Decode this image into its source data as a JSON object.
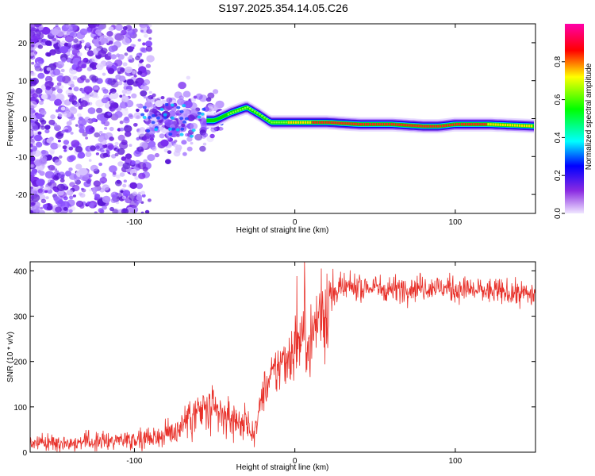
{
  "title": "S197.2025.354.14.05.C26",
  "chart_data": [
    {
      "type": "heatmap",
      "xlabel": "Height of straight line (km)",
      "ylabel": "Frequency (Hz)",
      "xlim": [
        -165,
        150
      ],
      "ylim": [
        -25,
        25
      ],
      "x_ticks": [
        -100,
        0,
        100
      ],
      "y_ticks": [
        -20,
        -10,
        0,
        10,
        20
      ],
      "colorbar": {
        "label": "Normalized spectral amplitude",
        "range": [
          0,
          1
        ],
        "ticks": [
          0.0,
          0.2,
          0.4,
          0.6,
          0.8
        ],
        "tick_labels": [
          "0.0",
          "0.2",
          "0.4",
          "0.6",
          "0.8"
        ],
        "colors": [
          "#f0e6ff",
          "#8a2be2",
          "#0000ff",
          "#00ffff",
          "#00ff00",
          "#ffff00",
          "#ff0000",
          "#ff00aa"
        ]
      },
      "ridge": {
        "x": [
          -50,
          -40,
          -30,
          -22,
          -15,
          0,
          20,
          40,
          60,
          80,
          90,
          100,
          120,
          150
        ],
        "freq": [
          -0.5,
          1.5,
          3,
          1,
          -1,
          -1,
          -1,
          -1.5,
          -1.5,
          -2,
          -2,
          -1.5,
          -1.5,
          -2
        ],
        "amplitude": [
          0.25,
          0.4,
          0.5,
          0.45,
          0.45,
          0.6,
          0.8,
          0.9,
          0.85,
          0.75,
          0.75,
          0.8,
          0.7,
          0.6
        ]
      }
    },
    {
      "type": "line",
      "xlabel": "Height of straight line (km)",
      "ylabel": "SNR (10 * v/v)",
      "xlim": [
        -165,
        150
      ],
      "ylim": [
        0,
        420
      ],
      "x_ticks": [
        -100,
        0,
        100
      ],
      "y_ticks": [
        0,
        100,
        200,
        300,
        400
      ],
      "series": [
        {
          "name": "SNR",
          "color": "#e8312a",
          "x": [
            -165,
            -140,
            -120,
            -100,
            -85,
            -75,
            -65,
            -55,
            -45,
            -35,
            -25,
            -20,
            -15,
            -10,
            -5,
            0,
            5,
            10,
            15,
            20,
            25,
            30,
            40,
            60,
            80,
            100,
            120,
            140,
            150
          ],
          "values": [
            20,
            22,
            25,
            30,
            35,
            45,
            80,
            90,
            80,
            70,
            45,
            130,
            160,
            190,
            210,
            230,
            260,
            250,
            300,
            320,
            355,
            360,
            365,
            360,
            365,
            360,
            355,
            350,
            350
          ]
        }
      ]
    }
  ]
}
